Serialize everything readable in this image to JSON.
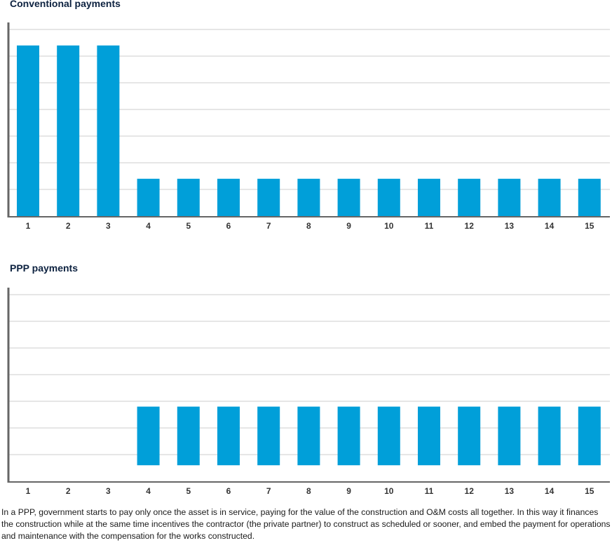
{
  "colors": {
    "bar": "#009fd9",
    "grid": "#e6e6e6",
    "axis": "#666666",
    "title": "#0d2240"
  },
  "chart_data": [
    {
      "type": "bar",
      "title": "Conventional payments",
      "categories": [
        "1",
        "2",
        "3",
        "4",
        "5",
        "6",
        "7",
        "8",
        "9",
        "10",
        "11",
        "12",
        "13",
        "14",
        "15"
      ],
      "values": [
        6.4,
        6.4,
        6.4,
        1.4,
        1.4,
        1.4,
        1.4,
        1.4,
        1.4,
        1.4,
        1.4,
        1.4,
        1.4,
        1.4,
        1.4
      ],
      "ylim": [
        0,
        7
      ],
      "grid": true
    },
    {
      "type": "bar",
      "title": "PPP payments",
      "categories": [
        "1",
        "2",
        "3",
        "4",
        "5",
        "6",
        "7",
        "8",
        "9",
        "10",
        "11",
        "12",
        "13",
        "14",
        "15"
      ],
      "ranges": [
        null,
        null,
        null,
        [
          0.6,
          2.8
        ],
        [
          0.6,
          2.8
        ],
        [
          0.6,
          2.8
        ],
        [
          0.6,
          2.8
        ],
        [
          0.6,
          2.8
        ],
        [
          0.6,
          2.8
        ],
        [
          0.6,
          2.8
        ],
        [
          0.6,
          2.8
        ],
        [
          0.6,
          2.8
        ],
        [
          0.6,
          2.8
        ],
        [
          0.6,
          2.8
        ],
        [
          0.6,
          2.8
        ]
      ],
      "ylim": [
        0,
        7
      ],
      "grid": true
    }
  ],
  "caption": "In a PPP, government starts to pay only once the asset is in service, paying for the value of the construction and O&M costs all together. In this way it finances the construction while at the same time incentives the contractor (the private partner) to construct as scheduled or sooner, and embed the payment for operations and maintenance with the compensation for the works constructed."
}
